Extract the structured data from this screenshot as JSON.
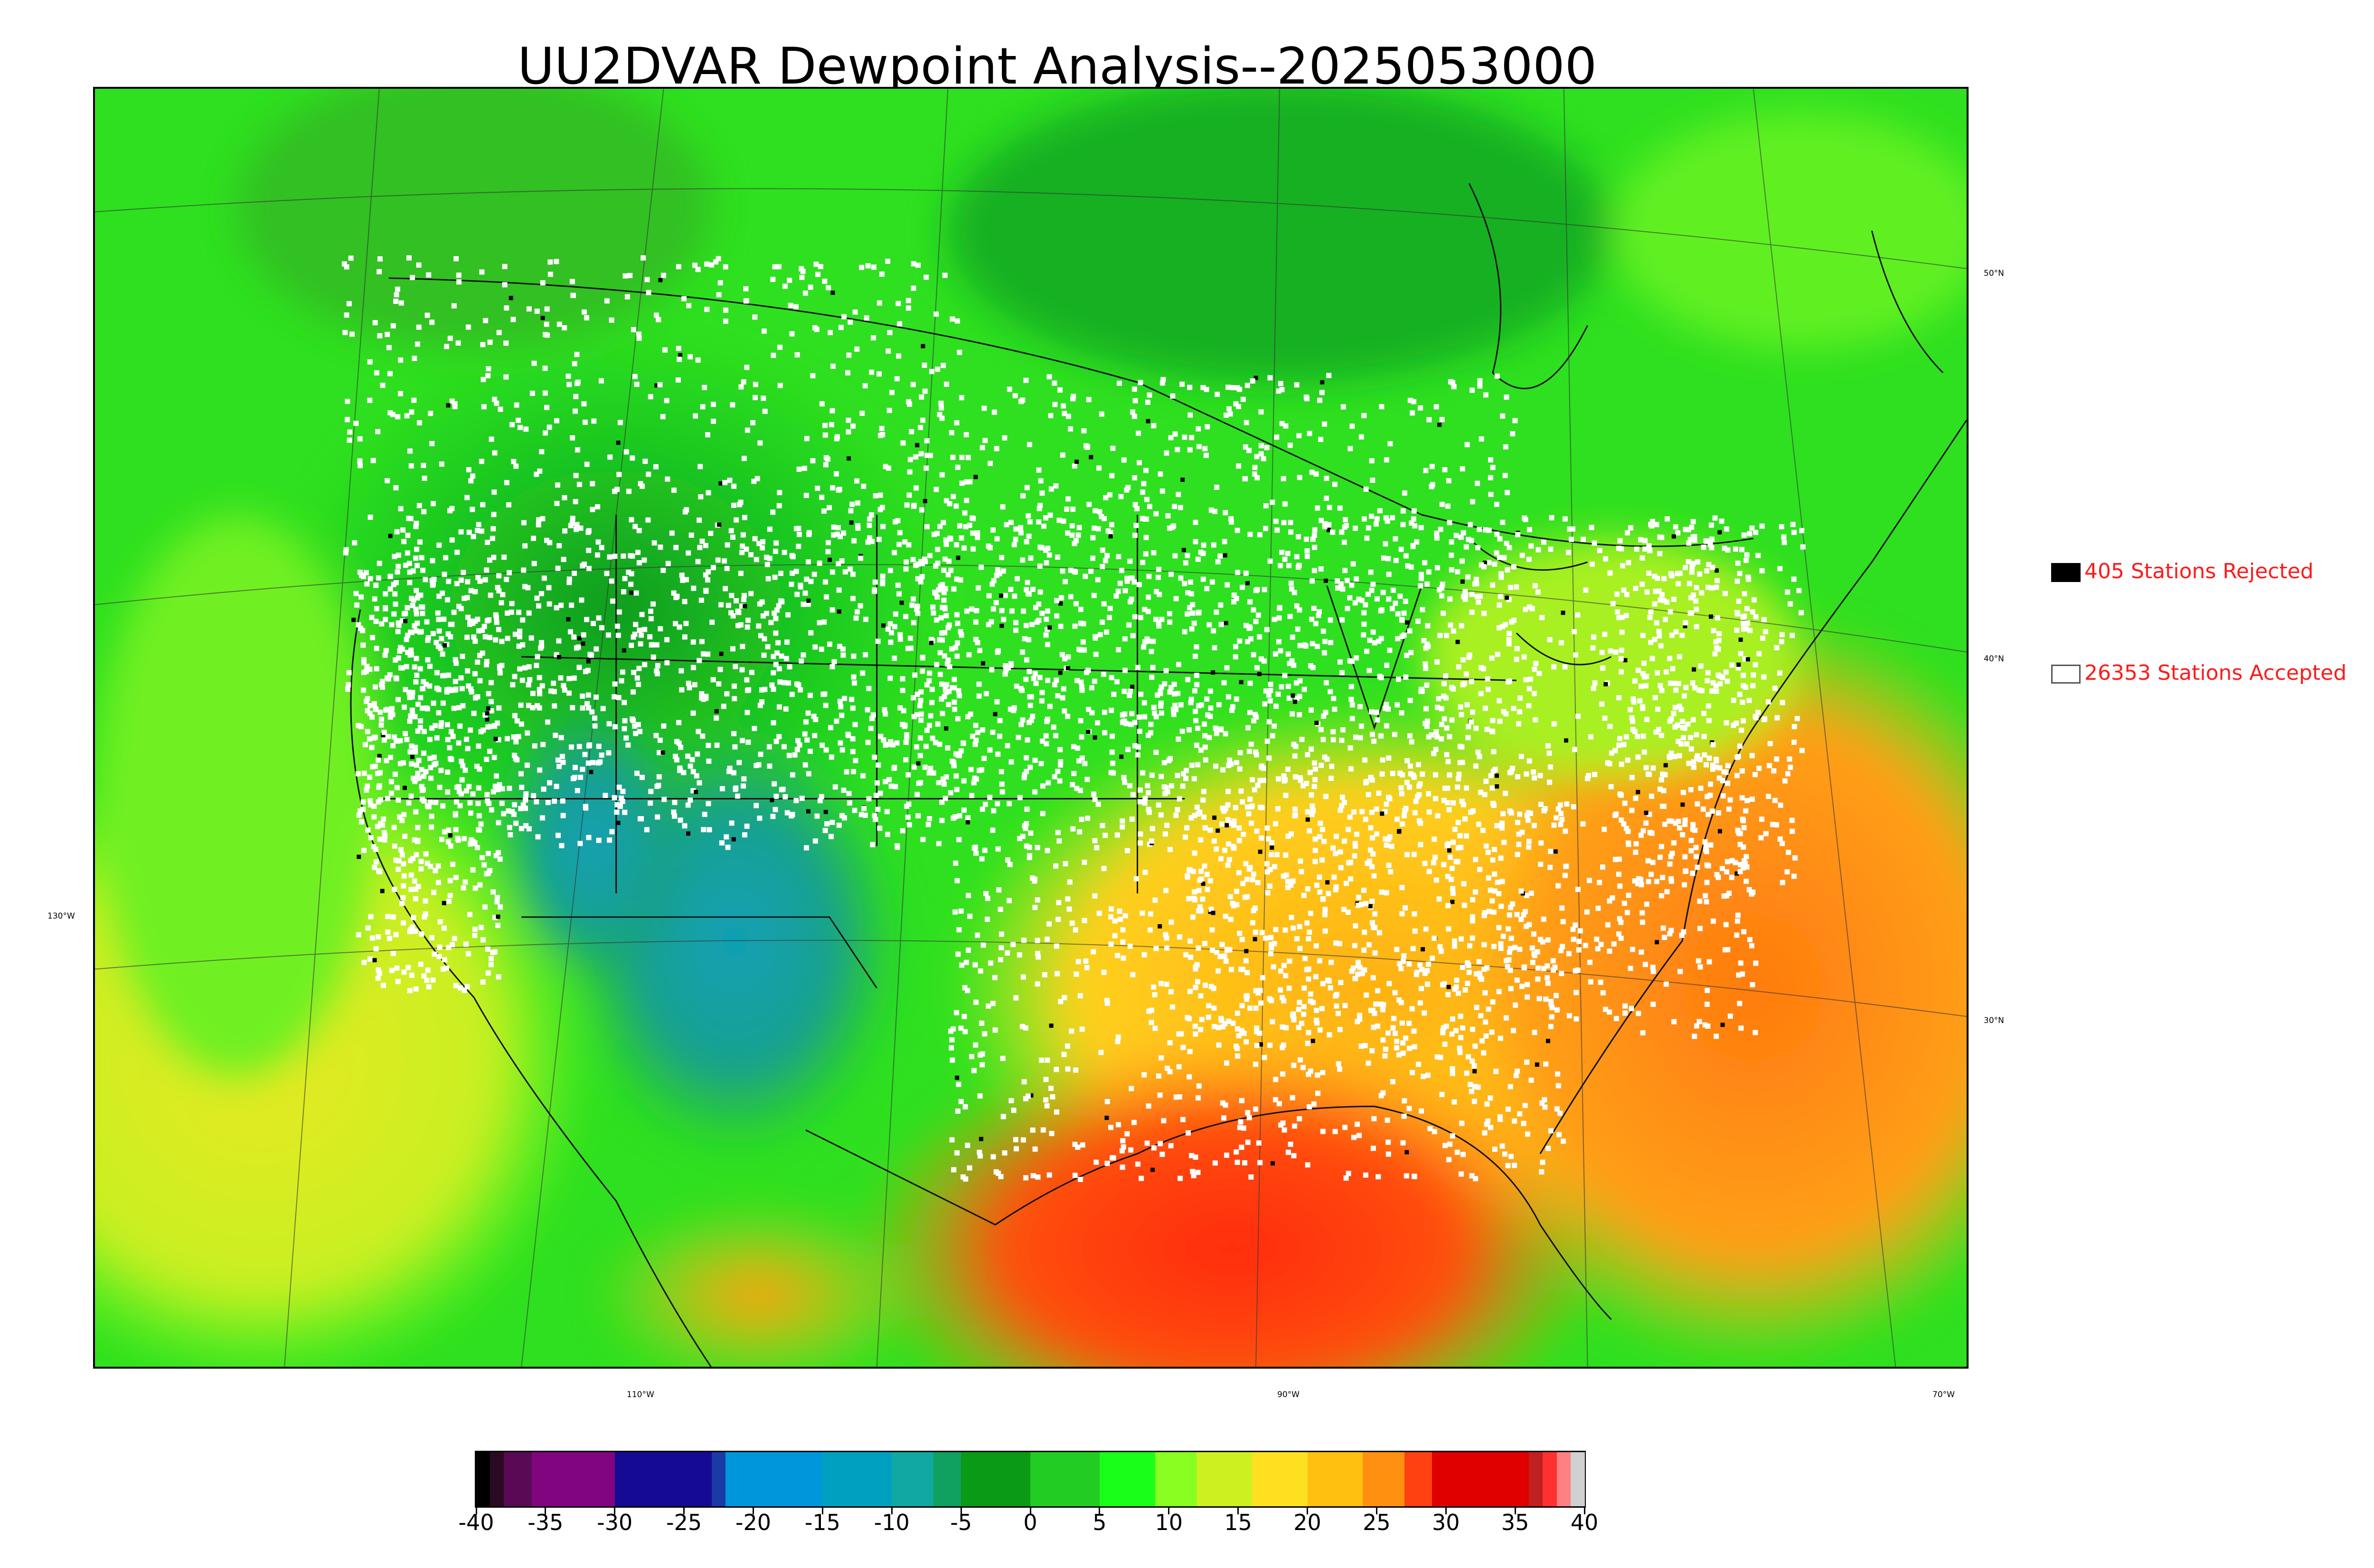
{
  "title": "UU2DVAR Dewpoint Analysis--2025053000",
  "legend": [
    {
      "label": "405 Stations Rejected",
      "fill": "#000000"
    },
    {
      "label": "26353 Stations Accepted",
      "fill": "#ffffff"
    }
  ],
  "latitude_labels": [
    "50°N",
    "40°N",
    "30°N"
  ],
  "longitude_labels": [
    "130°W",
    "110°W",
    "90°W",
    "70°W"
  ],
  "colorbar": {
    "min": -40,
    "max": 40,
    "ticks": [
      "-40",
      "-35",
      "-30",
      "-25",
      "-20",
      "-15",
      "-10",
      "-5",
      "0",
      "5",
      "10",
      "15",
      "20",
      "25",
      "30",
      "35",
      "40"
    ],
    "segments": [
      {
        "from": -40,
        "to": -39,
        "color": "#000000"
      },
      {
        "from": -39,
        "to": -38,
        "color": "#2a0a22"
      },
      {
        "from": -38,
        "to": -36,
        "color": "#5a0a55"
      },
      {
        "from": -36,
        "to": -30,
        "color": "#820580"
      },
      {
        "from": -30,
        "to": -23,
        "color": "#150a94"
      },
      {
        "from": -23,
        "to": -22,
        "color": "#1a3aa8"
      },
      {
        "from": -22,
        "to": -15,
        "color": "#0096db"
      },
      {
        "from": -15,
        "to": -10,
        "color": "#00a0c0"
      },
      {
        "from": -10,
        "to": -7,
        "color": "#10a8a0"
      },
      {
        "from": -7,
        "to": -5,
        "color": "#10a060"
      },
      {
        "from": -5,
        "to": 0,
        "color": "#0a9a15"
      },
      {
        "from": 0,
        "to": 5,
        "color": "#22cc22"
      },
      {
        "from": 5,
        "to": 9,
        "color": "#1aff1a"
      },
      {
        "from": 9,
        "to": 12,
        "color": "#88ff20"
      },
      {
        "from": 12,
        "to": 16,
        "color": "#ccf020"
      },
      {
        "from": 16,
        "to": 20,
        "color": "#ffe020"
      },
      {
        "from": 20,
        "to": 24,
        "color": "#ffc010"
      },
      {
        "from": 24,
        "to": 27,
        "color": "#ff9010"
      },
      {
        "from": 27,
        "to": 29,
        "color": "#ff4010"
      },
      {
        "from": 29,
        "to": 36,
        "color": "#e00000"
      },
      {
        "from": 36,
        "to": 37,
        "color": "#c02020"
      },
      {
        "from": 37,
        "to": 38,
        "color": "#ff3030"
      },
      {
        "from": 38,
        "to": 39,
        "color": "#ff8080"
      },
      {
        "from": 39,
        "to": 40,
        "color": "#d0d0d0"
      }
    ]
  }
}
